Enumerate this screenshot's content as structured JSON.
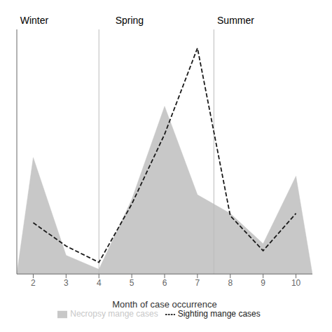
{
  "chart_data": {
    "type": "area",
    "x_label": "Month of case occurrence",
    "series": [
      {
        "name": "Necropsy mange cases",
        "type": "area",
        "color": "#c8c8c8",
        "x": [
          1.5,
          2,
          3,
          4,
          5,
          6,
          7,
          8,
          9,
          10,
          10.5
        ],
        "values": [
          0.0,
          0.5,
          0.08,
          0.02,
          0.32,
          0.72,
          0.34,
          0.26,
          0.13,
          0.42,
          0.0
        ]
      },
      {
        "name": "Sighting mange cases",
        "type": "line",
        "color": "#1a1a1a",
        "line_style": "dashed",
        "x": [
          2,
          3,
          4,
          5,
          6,
          7,
          8,
          9,
          10
        ],
        "values": [
          0.22,
          0.12,
          0.05,
          0.3,
          0.6,
          0.97,
          0.25,
          0.1,
          0.26
        ]
      }
    ],
    "annotations": [
      {
        "text": "Winter",
        "x": 1.6
      },
      {
        "text": "Spring",
        "x": 4.5
      },
      {
        "text": "Summer",
        "x": 7.6
      }
    ],
    "vertical_lines": [
      4.0,
      7.5
    ],
    "xlim": [
      1.5,
      10.5
    ],
    "ylim": [
      0,
      1.05
    ],
    "xticks": [
      2,
      3,
      4,
      5,
      6,
      7,
      8,
      9,
      10
    ],
    "tick_labels": "x",
    "grid": false,
    "legend": "bottom"
  }
}
